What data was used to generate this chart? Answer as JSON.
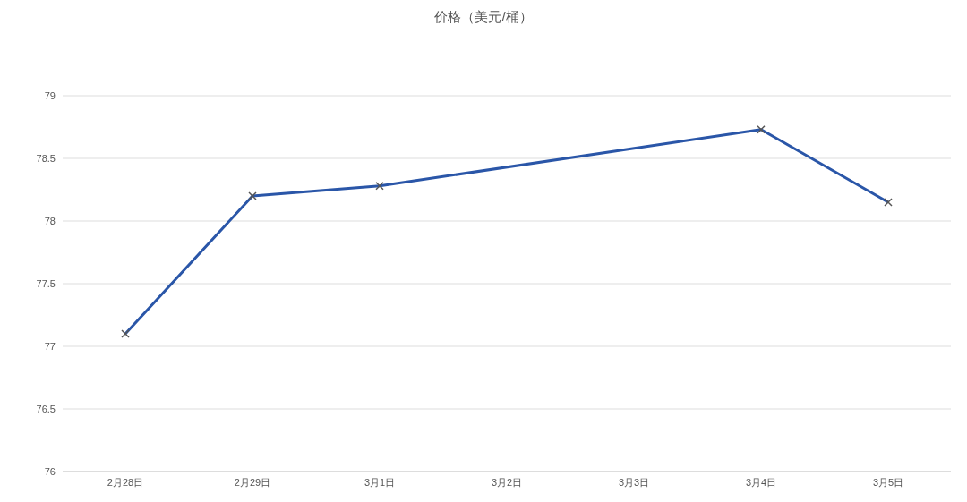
{
  "chart_data": {
    "type": "line",
    "title": "价格（美元/桶）",
    "categories": [
      "2月28日",
      "2月29日",
      "3月1日",
      "3月2日",
      "3月3日",
      "3月4日",
      "3月5日"
    ],
    "series": [
      {
        "color": "#2a56a8",
        "values": [
          77.1,
          78.2,
          78.28,
          null,
          null,
          78.73,
          78.15
        ]
      }
    ],
    "ylim": [
      76,
      79
    ],
    "yticks": [
      76,
      76.5,
      77,
      77.5,
      78,
      78.5,
      79
    ],
    "grid": "y",
    "marker": "cross",
    "line_style": "solid",
    "legend": false
  }
}
